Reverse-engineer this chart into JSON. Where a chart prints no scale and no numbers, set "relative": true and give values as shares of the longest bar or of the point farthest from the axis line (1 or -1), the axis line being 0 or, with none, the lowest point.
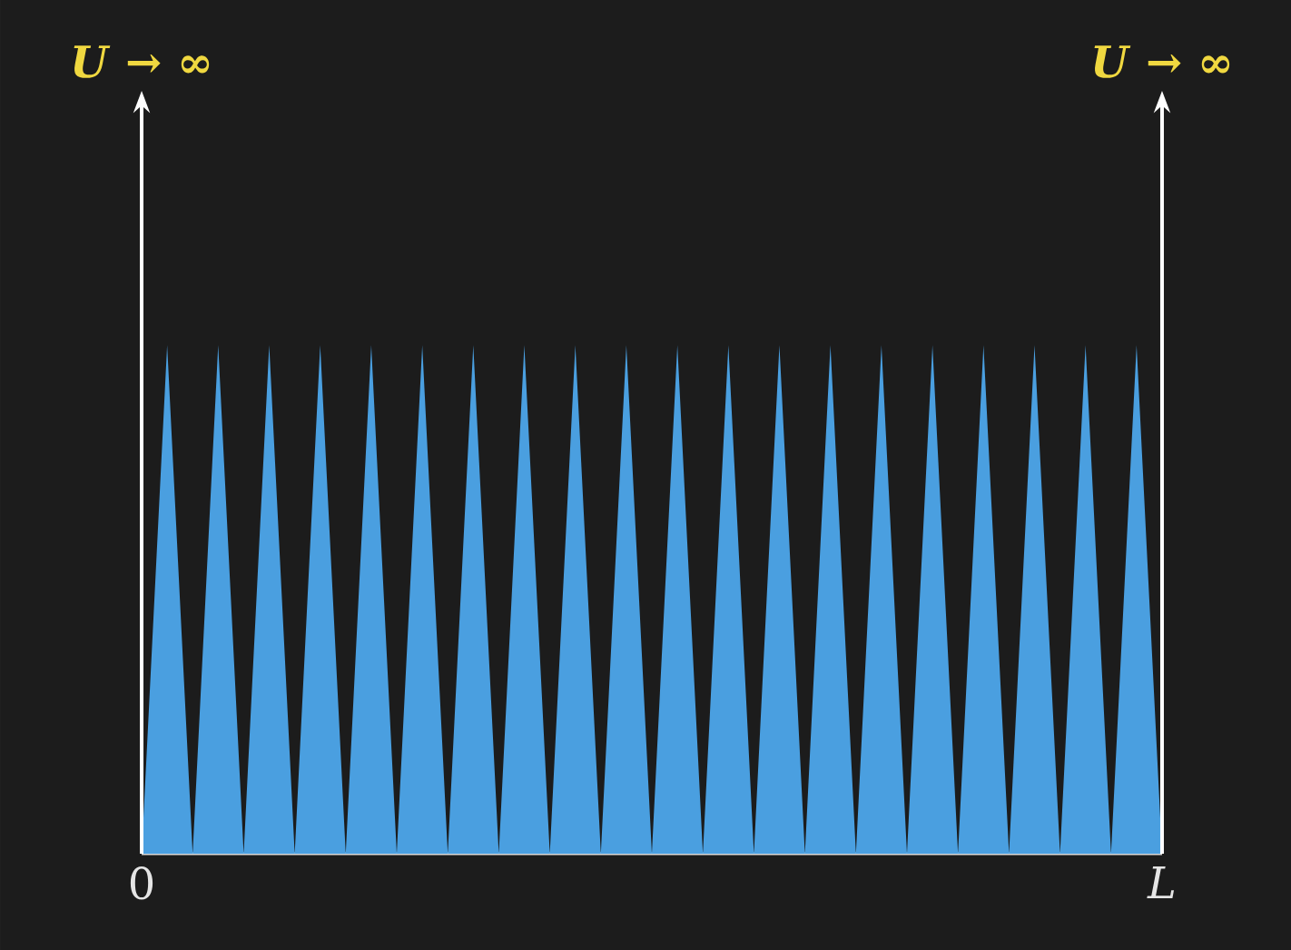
{
  "chart_data": {
    "type": "area",
    "relative": true,
    "categories": [
      "0",
      null,
      null,
      null,
      null,
      null,
      null,
      null,
      null,
      null,
      null,
      null,
      null,
      null,
      null,
      null,
      null,
      null,
      null,
      null,
      null,
      null,
      null,
      null,
      null,
      null,
      null,
      null,
      null,
      null,
      null,
      null,
      null,
      null,
      null,
      null,
      null,
      null,
      null,
      null,
      null,
      null,
      null,
      null,
      null,
      null,
      null,
      null,
      null,
      null,
      null,
      null,
      null,
      null,
      null,
      null,
      null,
      null,
      null,
      null,
      null,
      null,
      null,
      null,
      null,
      null,
      null,
      null,
      null,
      null,
      null,
      null,
      null,
      null,
      null,
      null,
      null,
      null,
      null,
      null,
      "*L*"
    ],
    "series": [
      {
        "color": "#4a9fe0",
        "values": [
          0,
          0.5,
          1,
          0.5,
          0,
          0.5,
          1,
          0.5,
          0,
          0.5,
          1,
          0.5,
          0,
          0.5,
          1,
          0.5,
          0,
          0.5,
          1,
          0.5,
          0,
          0.5,
          1,
          0.5,
          0,
          0.5,
          1,
          0.5,
          0,
          0.5,
          1,
          0.5,
          0,
          0.5,
          1,
          0.5,
          0,
          0.5,
          1,
          0.5,
          0,
          0.5,
          1,
          0.5,
          0,
          0.5,
          1,
          0.5,
          0,
          0.5,
          1,
          0.5,
          0,
          0.5,
          1,
          0.5,
          0,
          0.5,
          1,
          0.5,
          0,
          0.5,
          1,
          0.5,
          0,
          0.5,
          1,
          0.5,
          0,
          0.5,
          1,
          0.5,
          0,
          0.5,
          1,
          0.5,
          0,
          0.5,
          1,
          0.5,
          0
        ]
      }
    ],
    "annotations": [
      "*U* → ∞",
      "*U* → ∞"
    ]
  }
}
